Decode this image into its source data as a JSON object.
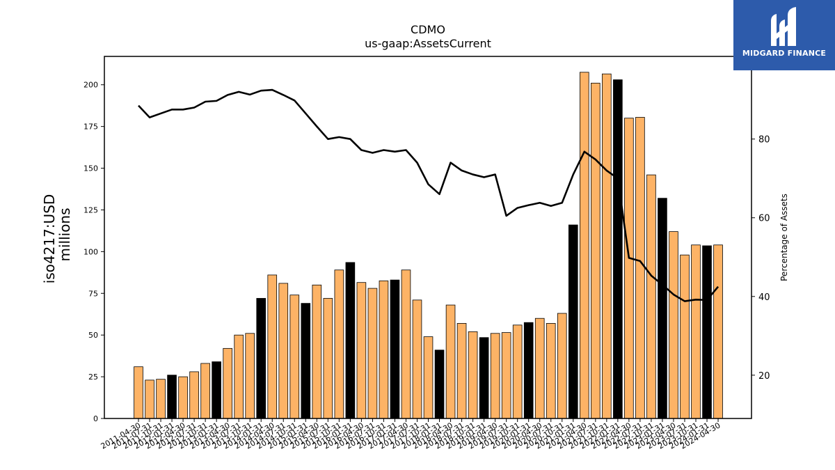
{
  "chart_data": {
    "type": "bar",
    "title": "CDMO",
    "subtitle": "us-gaap:AssetsCurrent",
    "ylabel_lines": [
      "iso4217:USD",
      "millions"
    ],
    "ylabel2": "Percentage of Assets",
    "ylim": [
      0,
      217
    ],
    "y2lim": [
      9,
      101
    ],
    "yticks": [
      0,
      25,
      50,
      75,
      100,
      125,
      150,
      175,
      200
    ],
    "y2ticks": [
      20,
      40,
      60,
      80
    ],
    "colors": {
      "bar": "#fdb366",
      "bar_q4": "#000000",
      "line": "#000000"
    },
    "categories": [
      "2011-04-30",
      "2011-07-31",
      "2011-10-31",
      "2012-01-31",
      "2012-04-30",
      "2012-07-31",
      "2012-10-31",
      "2013-01-31",
      "2013-04-30",
      "2013-07-31",
      "2013-10-31",
      "2014-01-31",
      "2014-04-30",
      "2014-07-31",
      "2014-10-31",
      "2015-01-31",
      "2015-04-30",
      "2015-07-31",
      "2015-10-31",
      "2016-01-31",
      "2016-04-30",
      "2016-07-31",
      "2016-10-31",
      "2017-01-31",
      "2017-04-30",
      "2017-07-31",
      "2017-10-31",
      "2018-01-31",
      "2018-04-30",
      "2018-07-31",
      "2018-10-31",
      "2019-01-31",
      "2019-04-30",
      "2019-07-31",
      "2019-10-31",
      "2020-01-31",
      "2020-04-30",
      "2020-07-31",
      "2020-10-31",
      "2021-01-31",
      "2021-04-30",
      "2021-07-31",
      "2021-10-31",
      "2022-01-31",
      "2022-04-30",
      "2022-07-31",
      "2022-10-31",
      "2023-01-31",
      "2023-04-30",
      "2023-07-31",
      "2023-10-31",
      "2024-01-31",
      "2024-04-30"
    ],
    "series": [
      {
        "type": "bar",
        "values": [
          31,
          23,
          23.5,
          26,
          25,
          28,
          33,
          34,
          42,
          50,
          51,
          72,
          86,
          81,
          74,
          69,
          80,
          72,
          89,
          93.5,
          81.5,
          78,
          82.5,
          83,
          89,
          71,
          49,
          41,
          68,
          57,
          52,
          48.5,
          51,
          51.5,
          56,
          57.5,
          60,
          57,
          63,
          116,
          207.5,
          201,
          206.5,
          203,
          180,
          180.5,
          146,
          132,
          112,
          98,
          104,
          103.5,
          104
        ],
        "highlight": [
          false,
          false,
          false,
          true,
          false,
          false,
          false,
          true,
          false,
          false,
          false,
          true,
          false,
          false,
          false,
          true,
          false,
          false,
          false,
          true,
          false,
          false,
          false,
          true,
          false,
          false,
          false,
          true,
          false,
          false,
          false,
          true,
          false,
          false,
          false,
          true,
          false,
          false,
          false,
          true,
          false,
          false,
          false,
          true,
          false,
          false,
          false,
          true,
          false,
          false,
          false,
          true,
          false
        ]
      },
      {
        "type": "line",
        "axis": "right",
        "values": [
          88.5,
          85.5,
          86.5,
          87.5,
          87.5,
          88,
          89.5,
          89.7,
          91.2,
          92,
          91.3,
          92.3,
          92.5,
          91.2,
          89.8,
          86.5,
          83.2,
          80,
          80.5,
          80,
          77.2,
          76.5,
          77.2,
          76.8,
          77.2,
          74,
          68.5,
          66,
          74,
          72,
          71,
          70.3,
          71,
          60.5,
          62.5,
          63.2,
          63.8,
          63,
          63.8,
          71,
          76.8,
          74.8,
          72,
          70,
          49.8,
          49,
          45.3,
          43,
          40.5,
          38.8,
          39.2,
          39.1,
          42.5
        ]
      }
    ]
  },
  "logo": {
    "text": "MIDGARD FINANCE",
    "icon": "midgard-logo-icon"
  }
}
